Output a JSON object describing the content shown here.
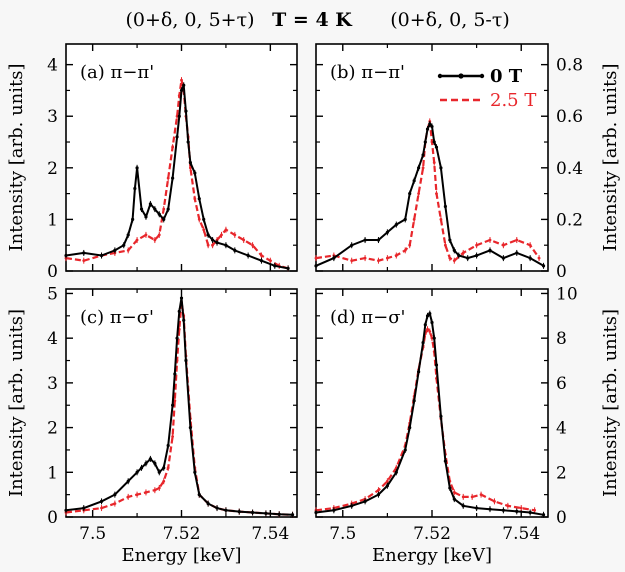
{
  "header": {
    "left": "(0+δ, 0, 5+τ)",
    "center": "T = 4 K",
    "right": "(0+δ, 0, 5-τ)"
  },
  "legend": {
    "s0": "0 T",
    "s1": "2.5 T"
  },
  "colors": {
    "s0": "#000000",
    "s1": "#e8262b"
  },
  "chart_data": [
    {
      "type": "line",
      "panel": "(a) π−π'",
      "xlabel": "",
      "ylabel": "Intensity [arb. units]",
      "xlim": [
        7.494,
        7.546
      ],
      "ylim": [
        0,
        4.4
      ],
      "xticks": [
        7.5,
        7.52,
        7.54
      ],
      "xtick_labels": [
        "",
        "",
        ""
      ],
      "yticks": [
        0,
        1,
        2,
        3,
        4
      ],
      "ytick_labels": [
        "0",
        "1",
        "2",
        "3",
        "4"
      ],
      "series": [
        {
          "name": "0 T",
          "x": [
            7.494,
            7.498,
            7.502,
            7.505,
            7.507,
            7.508,
            7.509,
            7.5095,
            7.51,
            7.511,
            7.512,
            7.513,
            7.514,
            7.515,
            7.516,
            7.517,
            7.518,
            7.519,
            7.5195,
            7.52,
            7.5205,
            7.521,
            7.5215,
            7.522,
            7.523,
            7.524,
            7.525,
            7.526,
            7.527,
            7.528,
            7.53,
            7.532,
            7.535,
            7.538,
            7.541,
            7.544
          ],
          "y": [
            0.3,
            0.35,
            0.3,
            0.4,
            0.5,
            0.7,
            1.0,
            1.6,
            2.0,
            1.2,
            1.05,
            1.3,
            1.2,
            1.1,
            1.0,
            1.2,
            1.8,
            2.6,
            3.0,
            3.5,
            3.6,
            3.1,
            2.5,
            2.1,
            1.9,
            1.4,
            1.0,
            0.7,
            0.6,
            0.55,
            0.5,
            0.4,
            0.3,
            0.2,
            0.1,
            0.05
          ]
        },
        {
          "name": "2.5 T",
          "x": [
            7.494,
            7.498,
            7.502,
            7.505,
            7.508,
            7.51,
            7.512,
            7.514,
            7.515,
            7.516,
            7.517,
            7.518,
            7.519,
            7.5195,
            7.52,
            7.5205,
            7.521,
            7.5215,
            7.522,
            7.523,
            7.524,
            7.525,
            7.526,
            7.527,
            7.528,
            7.529,
            7.53,
            7.532,
            7.534,
            7.536,
            7.538,
            7.54,
            7.542,
            7.544
          ],
          "y": [
            0.25,
            0.2,
            0.3,
            0.35,
            0.4,
            0.6,
            0.7,
            0.6,
            0.7,
            1.2,
            1.8,
            2.4,
            3.0,
            3.4,
            3.7,
            3.5,
            3.0,
            2.6,
            2.0,
            1.4,
            1.0,
            0.8,
            0.5,
            0.5,
            0.6,
            0.7,
            0.8,
            0.7,
            0.6,
            0.5,
            0.3,
            0.2,
            0.1,
            0.05
          ]
        }
      ]
    },
    {
      "type": "line",
      "panel": "(b) π−π'",
      "xlabel": "",
      "ylabel": "Intensity [arb. units]",
      "ylabel_side": "right",
      "xlim": [
        7.494,
        7.546
      ],
      "ylim": [
        0,
        0.88
      ],
      "xticks": [
        7.5,
        7.52,
        7.54
      ],
      "xtick_labels": [
        "",
        "",
        ""
      ],
      "yticks": [
        0,
        0.2,
        0.4,
        0.6,
        0.8
      ],
      "ytick_labels": [
        "0",
        "0.2",
        "0.4",
        "0.6",
        "0.8"
      ],
      "series": [
        {
          "name": "0 T",
          "x": [
            7.494,
            7.498,
            7.502,
            7.505,
            7.508,
            7.51,
            7.512,
            7.514,
            7.515,
            7.516,
            7.517,
            7.518,
            7.5185,
            7.519,
            7.5195,
            7.52,
            7.5205,
            7.521,
            7.522,
            7.523,
            7.524,
            7.525,
            7.526,
            7.528,
            7.53,
            7.533,
            7.536,
            7.539,
            7.542,
            7.545
          ],
          "y": [
            0.02,
            0.05,
            0.1,
            0.12,
            0.12,
            0.15,
            0.18,
            0.2,
            0.3,
            0.35,
            0.4,
            0.45,
            0.5,
            0.55,
            0.57,
            0.56,
            0.5,
            0.48,
            0.4,
            0.25,
            0.12,
            0.08,
            0.06,
            0.05,
            0.06,
            0.08,
            0.05,
            0.07,
            0.05,
            0.02
          ]
        },
        {
          "name": "2.5 T",
          "x": [
            7.494,
            7.498,
            7.502,
            7.505,
            7.508,
            7.51,
            7.512,
            7.514,
            7.515,
            7.516,
            7.517,
            7.518,
            7.5185,
            7.519,
            7.5195,
            7.52,
            7.5205,
            7.521,
            7.522,
            7.523,
            7.524,
            7.525,
            7.527,
            7.53,
            7.533,
            7.536,
            7.539,
            7.542,
            7.544
          ],
          "y": [
            0.05,
            0.06,
            0.04,
            0.05,
            0.04,
            0.05,
            0.06,
            0.08,
            0.1,
            0.2,
            0.3,
            0.4,
            0.5,
            0.55,
            0.58,
            0.5,
            0.42,
            0.3,
            0.2,
            0.1,
            0.05,
            0.04,
            0.07,
            0.1,
            0.12,
            0.1,
            0.12,
            0.1,
            0.05
          ]
        }
      ]
    },
    {
      "type": "line",
      "panel": "(c) π−σ'",
      "xlabel": "Energy [keV]",
      "ylabel": "Intensity [arb. units]",
      "xlim": [
        7.494,
        7.546
      ],
      "ylim": [
        0,
        5.1
      ],
      "xticks": [
        7.5,
        7.52,
        7.54
      ],
      "xtick_labels": [
        "7.5",
        "7.52",
        "7.54"
      ],
      "yticks": [
        0,
        1,
        2,
        3,
        4,
        5
      ],
      "ytick_labels": [
        "0",
        "1",
        "2",
        "3",
        "4",
        "5"
      ],
      "series": [
        {
          "name": "0 T",
          "x": [
            7.494,
            7.498,
            7.502,
            7.505,
            7.508,
            7.51,
            7.511,
            7.512,
            7.513,
            7.514,
            7.515,
            7.516,
            7.517,
            7.518,
            7.5185,
            7.519,
            7.5195,
            7.52,
            7.5205,
            7.521,
            7.522,
            7.523,
            7.524,
            7.526,
            7.528,
            7.53,
            7.533,
            7.536,
            7.539,
            7.542,
            7.545
          ],
          "y": [
            0.15,
            0.2,
            0.35,
            0.5,
            0.8,
            1.0,
            1.1,
            1.2,
            1.3,
            1.2,
            1.0,
            1.1,
            1.6,
            2.5,
            3.2,
            4.0,
            4.6,
            4.9,
            4.4,
            3.5,
            2.0,
            1.0,
            0.5,
            0.3,
            0.2,
            0.15,
            0.12,
            0.1,
            0.08,
            0.06,
            0.05
          ]
        },
        {
          "name": "2.5 T",
          "x": [
            7.494,
            7.498,
            7.502,
            7.505,
            7.508,
            7.51,
            7.512,
            7.514,
            7.515,
            7.516,
            7.517,
            7.518,
            7.5185,
            7.519,
            7.5195,
            7.52,
            7.5205,
            7.521,
            7.522,
            7.523,
            7.524,
            7.526,
            7.528,
            7.53,
            7.533,
            7.536,
            7.539,
            7.542,
            7.545
          ],
          "y": [
            0.1,
            0.15,
            0.2,
            0.3,
            0.45,
            0.5,
            0.55,
            0.6,
            0.65,
            0.8,
            1.1,
            1.8,
            2.6,
            3.5,
            4.2,
            4.8,
            4.5,
            3.6,
            2.2,
            1.1,
            0.5,
            0.3,
            0.2,
            0.15,
            0.12,
            0.1,
            0.08,
            0.06,
            0.05
          ]
        }
      ]
    },
    {
      "type": "line",
      "panel": "(d) π−σ'",
      "xlabel": "Energy [keV]",
      "ylabel": "Intensity [arb. units]",
      "ylabel_side": "right",
      "xlim": [
        7.494,
        7.546
      ],
      "ylim": [
        0,
        10.2
      ],
      "xticks": [
        7.5,
        7.52,
        7.54
      ],
      "xtick_labels": [
        "7.5",
        "7.52",
        "7.54"
      ],
      "yticks": [
        0,
        2,
        4,
        6,
        8,
        10
      ],
      "ytick_labels": [
        "0",
        "2",
        "4",
        "6",
        "8",
        "10"
      ],
      "series": [
        {
          "name": "0 T",
          "x": [
            7.494,
            7.498,
            7.502,
            7.505,
            7.508,
            7.51,
            7.512,
            7.514,
            7.515,
            7.516,
            7.517,
            7.518,
            7.5185,
            7.519,
            7.5195,
            7.52,
            7.5205,
            7.521,
            7.522,
            7.523,
            7.524,
            7.525,
            7.527,
            7.53,
            7.533,
            7.536,
            7.539,
            7.542,
            7.545
          ],
          "y": [
            0.2,
            0.3,
            0.5,
            0.7,
            1.0,
            1.4,
            2.0,
            3.0,
            4.0,
            5.2,
            6.5,
            7.8,
            8.6,
            9.0,
            9.1,
            8.7,
            8.0,
            6.8,
            4.5,
            2.5,
            1.3,
            0.8,
            0.5,
            0.4,
            0.35,
            0.3,
            0.25,
            0.2,
            0.1
          ]
        },
        {
          "name": "2.5 T",
          "x": [
            7.494,
            7.498,
            7.502,
            7.505,
            7.508,
            7.51,
            7.512,
            7.514,
            7.515,
            7.516,
            7.517,
            7.518,
            7.5185,
            7.519,
            7.5195,
            7.52,
            7.5205,
            7.521,
            7.522,
            7.523,
            7.524,
            7.525,
            7.527,
            7.529,
            7.531,
            7.534,
            7.537,
            7.54,
            7.543
          ],
          "y": [
            0.3,
            0.4,
            0.6,
            0.8,
            1.2,
            1.6,
            2.2,
            3.2,
            4.2,
            5.4,
            6.6,
            7.6,
            8.2,
            8.4,
            8.3,
            8.0,
            7.4,
            6.2,
            4.4,
            2.8,
            1.6,
            1.1,
            0.9,
            0.9,
            1.0,
            0.7,
            0.5,
            0.4,
            0.3
          ]
        }
      ]
    }
  ]
}
